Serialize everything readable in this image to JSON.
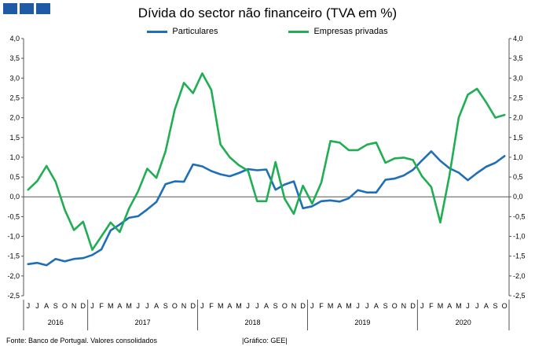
{
  "header": {
    "title": "Dívida do sector não financeiro (TVA em %)"
  },
  "footer": {
    "source": "Fonte: Banco de Portugal. Valores consolidados",
    "credit": "|Gráfico: GEE|"
  },
  "chart_data": {
    "type": "line",
    "title": "Dívida do sector não financeiro (TVA em %)",
    "ylim": [
      -2.5,
      4.0
    ],
    "y_ticks": [
      "4,0",
      "3,5",
      "3,0",
      "2,5",
      "2,0",
      "1,5",
      "1,0",
      "0,5",
      "0,0",
      "-0,5",
      "-1,0",
      "-1,5",
      "-2,0",
      "-2,5"
    ],
    "month_labels": [
      "J",
      "J",
      "A",
      "S",
      "O",
      "N",
      "D",
      "J",
      "F",
      "M",
      "A",
      "M",
      "J",
      "J",
      "A",
      "S",
      "O",
      "N",
      "D",
      "J",
      "F",
      "M",
      "A",
      "M",
      "J",
      "J",
      "A",
      "S",
      "O",
      "N",
      "D",
      "J",
      "F",
      "M",
      "A",
      "M",
      "J",
      "J",
      "A",
      "S",
      "O",
      "N",
      "D",
      "J",
      "F",
      "M",
      "A",
      "M",
      "J",
      "J",
      "A",
      "S",
      "O"
    ],
    "years": [
      {
        "label": "2016",
        "start": 0,
        "end": 6
      },
      {
        "label": "2017",
        "start": 7,
        "end": 18
      },
      {
        "label": "2018",
        "start": 19,
        "end": 30
      },
      {
        "label": "2019",
        "start": 31,
        "end": 42
      },
      {
        "label": "2020",
        "start": 43,
        "end": 52
      }
    ],
    "grid": false,
    "legend_position": "top",
    "series": [
      {
        "name": "Particulares",
        "color": "#1f6fb8",
        "values": [
          -1.7,
          -1.67,
          -1.73,
          -1.57,
          -1.63,
          -1.57,
          -1.55,
          -1.47,
          -1.33,
          -0.85,
          -0.7,
          -0.53,
          -0.49,
          -0.32,
          -0.13,
          0.32,
          0.39,
          0.38,
          0.82,
          0.77,
          0.65,
          0.57,
          0.52,
          0.6,
          0.7,
          0.67,
          0.69,
          0.18,
          0.31,
          0.39,
          -0.29,
          -0.24,
          -0.11,
          -0.09,
          -0.12,
          -0.04,
          0.17,
          0.11,
          0.11,
          0.43,
          0.46,
          0.54,
          0.68,
          0.92,
          1.15,
          0.91,
          0.72,
          0.61,
          0.42,
          0.6,
          0.76,
          0.86,
          1.03
        ]
      },
      {
        "name": "Empresas privadas",
        "color": "#1fae52",
        "values": [
          0.18,
          0.4,
          0.78,
          0.38,
          -0.33,
          -0.84,
          -0.63,
          -1.34,
          -1.0,
          -0.65,
          -0.89,
          -0.3,
          0.14,
          0.71,
          0.48,
          1.15,
          2.2,
          2.88,
          2.62,
          3.12,
          2.7,
          1.32,
          1.0,
          0.8,
          0.66,
          -0.11,
          -0.11,
          0.88,
          -0.05,
          -0.43,
          0.28,
          -0.17,
          0.36,
          1.41,
          1.37,
          1.18,
          1.18,
          1.32,
          1.37,
          0.86,
          0.97,
          0.99,
          0.93,
          0.52,
          0.25,
          -0.65,
          0.55,
          2.0,
          2.58,
          2.73,
          2.39,
          2.0,
          2.07
        ]
      }
    ]
  }
}
